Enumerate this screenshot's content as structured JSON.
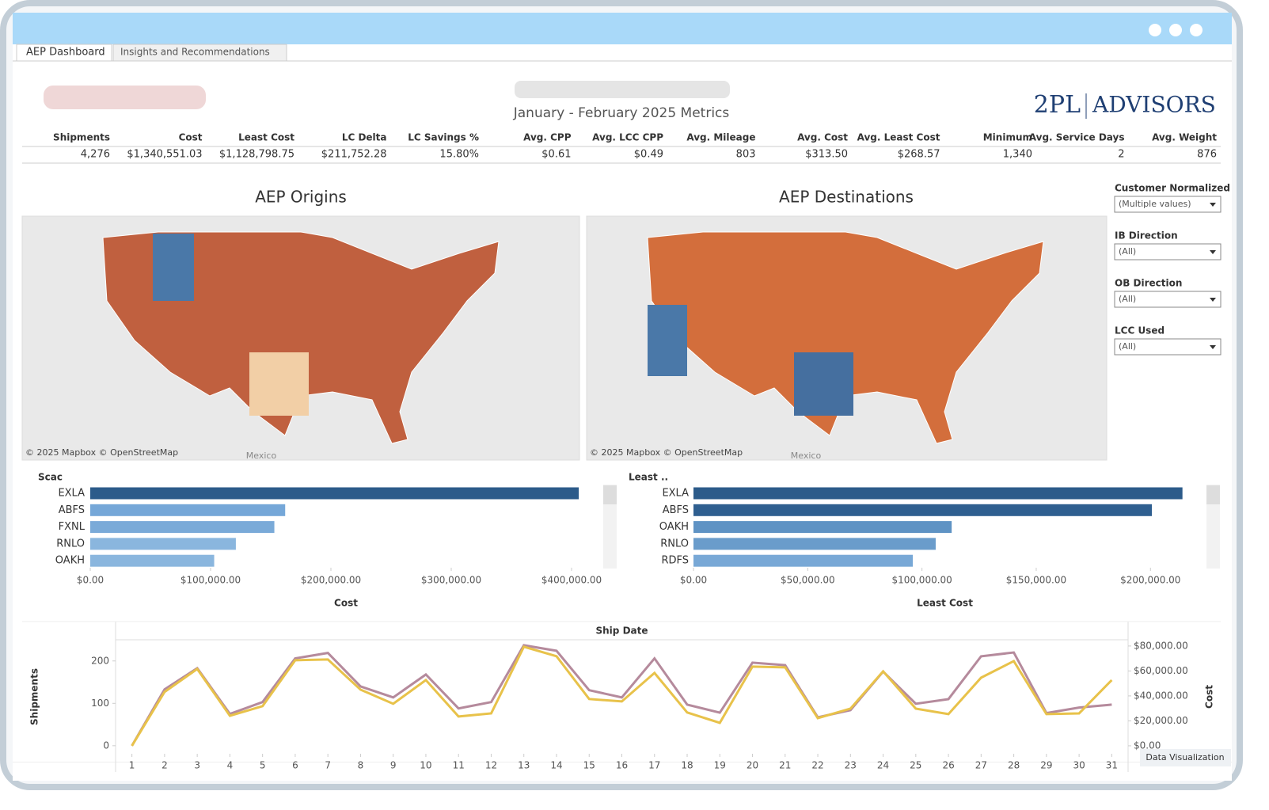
{
  "window": {
    "tabs": [
      "AEP Dashboard",
      "Insights and Recommendations"
    ]
  },
  "header": {
    "subtitle": "January - February 2025 Metrics",
    "logo": [
      "2PL",
      "ADVISORS"
    ]
  },
  "metrics": {
    "columns": [
      "Shipments",
      "Cost",
      "Least Cost",
      "LC Delta",
      "LC Savings %",
      "Avg. CPP",
      "Avg. LCC CPP",
      "Avg. Mileage",
      "Avg. Cost",
      "Avg. Least Cost",
      "Minimum",
      "Avg. Service Days",
      "Avg. Weight"
    ],
    "values": [
      "4,276",
      "$1,340,551.03",
      "$1,128,798.75",
      "$211,752.28",
      "15.80%",
      "$0.61",
      "$0.49",
      "803",
      "$313.50",
      "$268.57",
      "1,340",
      "2",
      "876"
    ]
  },
  "maps": [
    {
      "title": "AEP Origins",
      "attribution": "© 2025 Mapbox © OpenStreetMap",
      "label": "Mexico"
    },
    {
      "title": "AEP Destinations",
      "attribution": "© 2025 Mapbox © OpenStreetMap",
      "label": "Mexico"
    }
  ],
  "filters": [
    {
      "label": "Customer Normalized",
      "value": "(Multiple values)"
    },
    {
      "label": "IB Direction",
      "value": "(All)"
    },
    {
      "label": "OB Direction",
      "value": "(All)"
    },
    {
      "label": "LCC Used",
      "value": "(All)"
    }
  ],
  "badge": "Data Visualization",
  "chart_data": [
    {
      "type": "bar",
      "header": "Scac",
      "x_label": "Cost",
      "categories": [
        "EXLA",
        "ABFS",
        "FXNL",
        "RNLO",
        "OAKH"
      ],
      "values": [
        406000,
        162000,
        153000,
        121000,
        103000
      ],
      "colors": [
        "#2c5b8a",
        "#75a7d8",
        "#7aaad8",
        "#8ab6de",
        "#8ab6de"
      ],
      "xlim": [
        0,
        425000
      ],
      "xticks": [
        {
          "value": 0,
          "label": "$0.00"
        },
        {
          "value": 100000,
          "label": "$100,000.00"
        },
        {
          "value": 200000,
          "label": "$200,000.00"
        },
        {
          "value": 300000,
          "label": "$300,000.00"
        },
        {
          "value": 400000,
          "label": "$400,000.00"
        }
      ]
    },
    {
      "type": "bar",
      "header": "Least ..",
      "x_label": "Least Cost",
      "categories": [
        "EXLA",
        "ABFS",
        "OAKH",
        "RNLO",
        "RDFS"
      ],
      "values": [
        214000,
        200600,
        113000,
        106000,
        96000
      ],
      "colors": [
        "#2c5b8a",
        "#2f5f90",
        "#5f93c4",
        "#6a9ccb",
        "#78a8d6"
      ],
      "xlim": [
        0,
        220000
      ],
      "xticks": [
        {
          "value": 0,
          "label": "$0.00"
        },
        {
          "value": 50000,
          "label": "$50,000.00"
        },
        {
          "value": 100000,
          "label": "$100,000.00"
        },
        {
          "value": 150000,
          "label": "$150,000.00"
        },
        {
          "value": 200000,
          "label": "$200,000.00"
        }
      ]
    },
    {
      "type": "line",
      "title": "Ship Date",
      "y_label": "Shipments",
      "y2_label": "Cost",
      "x": [
        1,
        2,
        3,
        4,
        5,
        6,
        7,
        8,
        9,
        10,
        11,
        12,
        13,
        14,
        15,
        16,
        17,
        18,
        19,
        20,
        21,
        22,
        23,
        24,
        25,
        26,
        27,
        28,
        29,
        30,
        31
      ],
      "xlim": [
        0.5,
        31.5
      ],
      "ylim": [
        -19,
        250
      ],
      "yticks": [
        0,
        100,
        200
      ],
      "y2lim": [
        -6400,
        85000
      ],
      "y2ticks": [
        {
          "value": 0,
          "label": "$0.00"
        },
        {
          "value": 20000,
          "label": "$20,000.00"
        },
        {
          "value": 40000,
          "label": "$40,000.00"
        },
        {
          "value": 60000,
          "label": "$60,000.00"
        },
        {
          "value": 80000,
          "label": "$80,000.00"
        }
      ],
      "series": [
        {
          "color": "#b58a9c",
          "values": [
            0,
            133,
            183,
            75,
            103,
            206,
            219,
            140,
            114,
            168,
            88,
            103,
            237,
            224,
            131,
            114,
            206,
            97,
            78,
            196,
            190,
            67,
            84,
            175,
            99,
            110,
            211,
            220,
            77,
            90,
            97
          ]
        },
        {
          "color": "#e8c24a",
          "axis": "y2",
          "values": [
            0,
            43200,
            61600,
            24100,
            31800,
            68600,
            69200,
            45000,
            33700,
            52700,
            23500,
            26000,
            79400,
            71800,
            37500,
            35600,
            58400,
            26700,
            18400,
            63500,
            62900,
            22200,
            29800,
            59700,
            29800,
            25400,
            54600,
            67900,
            25400,
            26000,
            52700
          ]
        }
      ]
    }
  ]
}
